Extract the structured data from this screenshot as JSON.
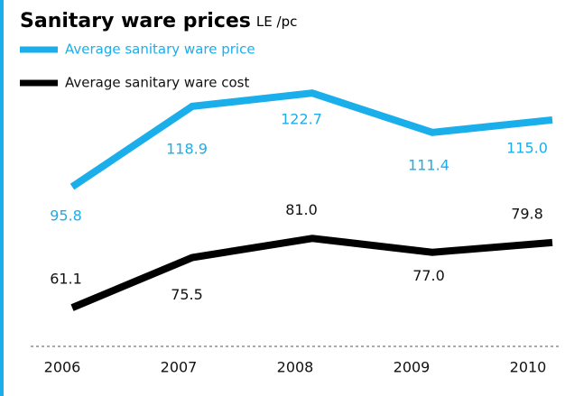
{
  "chart_data": {
    "type": "line",
    "title": "Sanitary ware prices",
    "subtitle": "LE /pc",
    "categories": [
      "2006",
      "2007",
      "2008",
      "2009",
      "2010"
    ],
    "series": [
      {
        "name": "Average sanitary ware price",
        "color": "#1aaeea",
        "values": [
          95.8,
          118.9,
          122.7,
          111.4,
          115.0
        ],
        "value_labels": [
          "95.8",
          "118.9",
          "122.7",
          "111.4",
          "115.0"
        ]
      },
      {
        "name": "Average sanitary ware cost",
        "color": "#000000",
        "values": [
          61.1,
          75.5,
          81.0,
          77.0,
          79.8
        ],
        "value_labels": [
          "61.1",
          "75.5",
          "81.0",
          "77.0",
          "79.8"
        ]
      }
    ],
    "ylim": [
      50,
      130
    ]
  }
}
